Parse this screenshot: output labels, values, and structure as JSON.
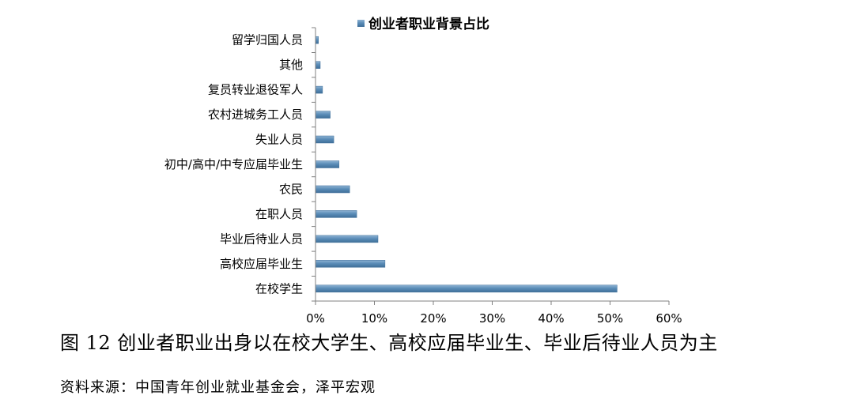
{
  "chart_data": {
    "type": "bar",
    "orientation": "horizontal",
    "categories": [
      "留学归国人员",
      "其他",
      "复员转业退役军人",
      "农村进城务工人员",
      "失业人员",
      "初中/高中/中专应届毕业生",
      "农民",
      "在职人员",
      "毕业后待业人员",
      "高校应届毕业生",
      "在校学生"
    ],
    "series": [
      {
        "name": "创业者职业背景占比",
        "values": [
          0.5,
          0.8,
          1.2,
          2.5,
          3.1,
          4.0,
          5.8,
          7.0,
          10.6,
          11.8,
          51.2
        ]
      }
    ],
    "xlim": [
      0,
      60
    ],
    "xticks": [
      "0%",
      "10%",
      "20%",
      "30%",
      "40%",
      "50%",
      "60%"
    ],
    "legend_position": "top",
    "grid": false,
    "bar_color": "#5b8db8"
  },
  "caption": "图 12 创业者职业出身以在校大学生、高校应届毕业生、毕业后待业人员为主",
  "source": "资料来源：中国青年创业就业基金会，泽平宏观"
}
